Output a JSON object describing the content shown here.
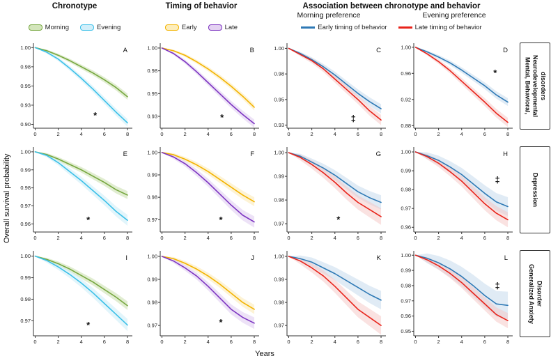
{
  "figure": {
    "ylabel": "Overall survival probability",
    "xlabel": "Years",
    "col_headers": [
      "Chronotype",
      "Timing of behavior",
      "Association between chronotype  and behavior"
    ],
    "sub_headers": [
      "Morning preference",
      "Evening preference"
    ],
    "row_labels": [
      "Mental, Behavioral, Neurodevelopmental disorders",
      "Depression",
      "Generalized Anxiety Disorder"
    ],
    "legends": {
      "chronotype": [
        {
          "label": "Morning",
          "line": "#76a73f",
          "fill": "#d3e5bb"
        },
        {
          "label": "Evening",
          "line": "#3bc0e8",
          "fill": "#d2effa"
        }
      ],
      "timing": [
        {
          "label": "Early",
          "line": "#f3b300",
          "fill": "#fdedbb"
        },
        {
          "label": "Late",
          "line": "#7d35c1",
          "fill": "#e4d2f2"
        }
      ],
      "association": [
        {
          "label": "Early timing of behavior",
          "color": "#2e79b5"
        },
        {
          "label": "Late timing of behavior",
          "color": "#e8231a"
        }
      ]
    }
  },
  "chart_data": {
    "type": "line",
    "title": "Kaplan-Meier overall survival probability by chronotype and timing of behavior",
    "xlabel": "Years",
    "ylabel": "Overall survival probability",
    "x": [
      0,
      1,
      2,
      3,
      4,
      5,
      6,
      7,
      8
    ],
    "xticks": [
      0,
      2,
      4,
      6,
      8
    ],
    "xlim": [
      -0.15,
      8.3
    ],
    "grid": false,
    "panels": [
      {
        "id": "A",
        "ylim": [
          0.895,
          1.003
        ],
        "yticks": [
          {
            "v": 1.0,
            "label": "1.00"
          },
          {
            "v": 0.975,
            "label": "0.98"
          },
          {
            "v": 0.95,
            "label": "0.95"
          },
          {
            "v": 0.925,
            "label": "0.93"
          },
          {
            "v": 0.9,
            "label": "0.90"
          }
        ],
        "marker": {
          "symbol": "*",
          "x": 5.2,
          "y": 0.9075
        },
        "series": [
          {
            "name": "Morning",
            "color": "#76a73f",
            "fill": "#c4dba4",
            "band": 0.004,
            "y": [
              1.0,
              0.996,
              0.99,
              0.983,
              0.975,
              0.967,
              0.958,
              0.948,
              0.936
            ]
          },
          {
            "name": "Evening",
            "color": "#3bc0e8",
            "fill": "#c5ebf8",
            "band": 0.005,
            "y": [
              1.0,
              0.994,
              0.985,
              0.973,
              0.96,
              0.946,
              0.931,
              0.916,
              0.902
            ]
          }
        ]
      },
      {
        "id": "B",
        "ylim": [
          0.912,
          1.003
        ],
        "yticks": [
          {
            "v": 1.0,
            "label": "1.00"
          },
          {
            "v": 0.975,
            "label": "0.98"
          },
          {
            "v": 0.95,
            "label": "0.95"
          },
          {
            "v": 0.925,
            "label": "0.93"
          }
        ],
        "marker": {
          "symbol": "*",
          "x": 5.2,
          "y": 0.9205
        },
        "series": [
          {
            "name": "Early",
            "color": "#f3b300",
            "fill": "#fbe8ac",
            "band": 0.0035,
            "y": [
              1.0,
              0.997,
              0.992,
              0.985,
              0.977,
              0.968,
              0.958,
              0.947,
              0.935
            ]
          },
          {
            "name": "Late",
            "color": "#7d35c1",
            "fill": "#dcc6f0",
            "band": 0.0045,
            "y": [
              1.0,
              0.994,
              0.985,
              0.974,
              0.962,
              0.95,
              0.938,
              0.927,
              0.917
            ]
          }
        ]
      },
      {
        "id": "C",
        "ylim": [
          0.922,
          1.003
        ],
        "yticks": [
          {
            "v": 1.0,
            "label": "1.00"
          },
          {
            "v": 0.975,
            "label": "0.98"
          },
          {
            "v": 0.95,
            "label": "0.95"
          },
          {
            "v": 0.925,
            "label": "0.93"
          }
        ],
        "marker": {
          "symbol": "‡",
          "x": 5.6,
          "y": 0.9285
        },
        "series": [
          {
            "name": "Early timing of behavior",
            "color": "#2e79b5",
            "fill": "#c2d8ec",
            "band": 0.0045,
            "y": [
              1.0,
              0.995,
              0.989,
              0.982,
              0.974,
              0.965,
              0.956,
              0.948,
              0.941
            ]
          },
          {
            "name": "Late timing of behavior",
            "color": "#e8231a",
            "fill": "#f6c6c3",
            "band": 0.005,
            "y": [
              1.0,
              0.994,
              0.988,
              0.98,
              0.97,
              0.96,
              0.95,
              0.939,
              0.93
            ]
          }
        ]
      },
      {
        "id": "D",
        "ylim": [
          0.876,
          1.003
        ],
        "yticks": [
          {
            "v": 1.0,
            "label": "1.00"
          },
          {
            "v": 0.96,
            "label": "0.96"
          },
          {
            "v": 0.92,
            "label": "0.92"
          },
          {
            "v": 0.88,
            "label": "0.88"
          }
        ],
        "marker": {
          "symbol": "*",
          "x": 6.9,
          "y": 0.956
        },
        "series": [
          {
            "name": "Early timing of behavior",
            "color": "#2e79b5",
            "fill": "#c2d8ec",
            "band": 0.006,
            "y": [
              1.0,
              0.993,
              0.985,
              0.976,
              0.965,
              0.953,
              0.941,
              0.927,
              0.916
            ]
          },
          {
            "name": "Late timing of behavior",
            "color": "#e8231a",
            "fill": "#f6c6c3",
            "band": 0.007,
            "y": [
              1.0,
              0.99,
              0.978,
              0.964,
              0.948,
              0.932,
              0.916,
              0.899,
              0.885
            ]
          }
        ]
      },
      {
        "id": "E",
        "ylim": [
          0.9555,
          1.0015
        ],
        "yticks": [
          {
            "v": 1.0,
            "label": "1.00"
          },
          {
            "v": 0.99,
            "label": "0.99"
          },
          {
            "v": 0.98,
            "label": "0.98"
          },
          {
            "v": 0.97,
            "label": "0.97"
          },
          {
            "v": 0.96,
            "label": "0.96"
          }
        ],
        "marker": {
          "symbol": "*",
          "x": 4.6,
          "y": 0.9605
        },
        "series": [
          {
            "name": "Morning",
            "color": "#76a73f",
            "fill": "#c4dba4",
            "band": 0.0022,
            "y": [
              1.0,
              0.9985,
              0.996,
              0.993,
              0.99,
              0.9865,
              0.983,
              0.979,
              0.976
            ]
          },
          {
            "name": "Evening",
            "color": "#3bc0e8",
            "fill": "#c5ebf8",
            "band": 0.003,
            "y": [
              1.0,
              0.998,
              0.994,
              0.989,
              0.984,
              0.9785,
              0.973,
              0.967,
              0.962
            ]
          }
        ]
      },
      {
        "id": "F",
        "ylim": [
          0.9645,
          1.0015
        ],
        "yticks": [
          {
            "v": 1.0,
            "label": "1.00"
          },
          {
            "v": 0.99,
            "label": "0.99"
          },
          {
            "v": 0.98,
            "label": "0.98"
          },
          {
            "v": 0.97,
            "label": "0.97"
          }
        ],
        "marker": {
          "symbol": "*",
          "x": 5.1,
          "y": 0.9685
        },
        "series": [
          {
            "name": "Early",
            "color": "#f3b300",
            "fill": "#fbe8ac",
            "band": 0.002,
            "y": [
              1.0,
              0.999,
              0.997,
              0.9945,
              0.9915,
              0.988,
              0.9845,
              0.981,
              0.978
            ]
          },
          {
            "name": "Late",
            "color": "#7d35c1",
            "fill": "#dcc6f0",
            "band": 0.0025,
            "y": [
              1.0,
              0.998,
              0.995,
              0.991,
              0.9865,
              0.9815,
              0.9765,
              0.972,
              0.969
            ]
          }
        ]
      },
      {
        "id": "G",
        "ylim": [
          0.9665,
          1.0015
        ],
        "yticks": [
          {
            "v": 1.0,
            "label": "1.00"
          },
          {
            "v": 0.99,
            "label": "0.99"
          },
          {
            "v": 0.98,
            "label": "0.98"
          },
          {
            "v": 0.97,
            "label": "0.97"
          }
        ],
        "marker": {
          "symbol": "*",
          "x": 4.3,
          "y": 0.9705
        },
        "series": [
          {
            "name": "Early timing of behavior",
            "color": "#2e79b5",
            "fill": "#c2d8ec",
            "band": 0.003,
            "y": [
              1.0,
              0.9985,
              0.996,
              0.9935,
              0.9905,
              0.987,
              0.9835,
              0.981,
              0.979
            ]
          },
          {
            "name": "Late timing of behavior",
            "color": "#e8231a",
            "fill": "#f6c6c3",
            "band": 0.0035,
            "y": [
              1.0,
              0.998,
              0.995,
              0.9915,
              0.9875,
              0.983,
              0.979,
              0.976,
              0.973
            ]
          }
        ]
      },
      {
        "id": "H",
        "ylim": [
          0.9575,
          1.0015
        ],
        "yticks": [
          {
            "v": 1.0,
            "label": "1.00"
          },
          {
            "v": 0.99,
            "label": "0.99"
          },
          {
            "v": 0.98,
            "label": "0.98"
          },
          {
            "v": 0.97,
            "label": "0.97"
          },
          {
            "v": 0.96,
            "label": "0.96"
          }
        ],
        "marker": {
          "symbol": "‡",
          "x": 7.1,
          "y": 0.9835
        },
        "series": [
          {
            "name": "Early timing of behavior",
            "color": "#2e79b5",
            "fill": "#c2d8ec",
            "band": 0.005,
            "y": [
              1.0,
              0.998,
              0.9955,
              0.992,
              0.988,
              0.983,
              0.978,
              0.9735,
              0.971
            ]
          },
          {
            "name": "Late timing of behavior",
            "color": "#e8231a",
            "fill": "#f6c6c3",
            "band": 0.004,
            "y": [
              1.0,
              0.9975,
              0.994,
              0.9895,
              0.9845,
              0.9785,
              0.9725,
              0.9675,
              0.964
            ]
          }
        ]
      },
      {
        "id": "I",
        "ylim": [
          0.963,
          1.0015
        ],
        "yticks": [
          {
            "v": 1.0,
            "label": "1.00"
          },
          {
            "v": 0.99,
            "label": "0.99"
          },
          {
            "v": 0.98,
            "label": "0.98"
          },
          {
            "v": 0.97,
            "label": "0.97"
          }
        ],
        "marker": {
          "symbol": "*",
          "x": 4.6,
          "y": 0.9665
        },
        "series": [
          {
            "name": "Morning",
            "color": "#76a73f",
            "fill": "#c4dba4",
            "band": 0.002,
            "y": [
              1.0,
              0.9985,
              0.9965,
              0.994,
              0.991,
              0.988,
              0.9845,
              0.981,
              0.977
            ]
          },
          {
            "name": "Evening",
            "color": "#3bc0e8",
            "fill": "#c5ebf8",
            "band": 0.0028,
            "y": [
              1.0,
              0.998,
              0.995,
              0.9915,
              0.9875,
              0.983,
              0.978,
              0.973,
              0.968
            ]
          }
        ]
      },
      {
        "id": "J",
        "ylim": [
          0.9655,
          1.0015
        ],
        "yticks": [
          {
            "v": 1.0,
            "label": "1.00"
          },
          {
            "v": 0.99,
            "label": "0.99"
          },
          {
            "v": 0.98,
            "label": "0.98"
          },
          {
            "v": 0.97,
            "label": "0.97"
          }
        ],
        "marker": {
          "symbol": "*",
          "x": 5.1,
          "y": 0.97
        },
        "series": [
          {
            "name": "Early",
            "color": "#f3b300",
            "fill": "#fbe8ac",
            "band": 0.002,
            "y": [
              1.0,
              0.999,
              0.997,
              0.9945,
              0.9915,
              0.988,
              0.984,
              0.98,
              0.977
            ]
          },
          {
            "name": "Late",
            "color": "#7d35c1",
            "fill": "#dcc6f0",
            "band": 0.0025,
            "y": [
              1.0,
              0.998,
              0.995,
              0.9915,
              0.987,
              0.982,
              0.977,
              0.9735,
              0.971
            ]
          }
        ]
      },
      {
        "id": "K",
        "ylim": [
          0.9655,
          1.0015
        ],
        "yticks": [
          {
            "v": 1.0,
            "label": "1.00"
          },
          {
            "v": 0.99,
            "label": "0.99"
          },
          {
            "v": 0.98,
            "label": "0.98"
          },
          {
            "v": 0.97,
            "label": "0.97"
          }
        ],
        "marker": null,
        "series": [
          {
            "name": "Early timing of behavior",
            "color": "#2e79b5",
            "fill": "#c2d8ec",
            "band": 0.004,
            "y": [
              1.0,
              0.999,
              0.9975,
              0.995,
              0.9925,
              0.9895,
              0.9865,
              0.9835,
              0.981
            ]
          },
          {
            "name": "Late timing of behavior",
            "color": "#e8231a",
            "fill": "#f6c6c3",
            "band": 0.004,
            "y": [
              1.0,
              0.998,
              0.995,
              0.9915,
              0.987,
              0.982,
              0.977,
              0.9735,
              0.97
            ]
          }
        ]
      },
      {
        "id": "L",
        "ylim": [
          0.947,
          1.0015
        ],
        "yticks": [
          {
            "v": 1.0,
            "label": "1.00"
          },
          {
            "v": 0.99,
            "label": "0.99"
          },
          {
            "v": 0.98,
            "label": "0.98"
          },
          {
            "v": 0.97,
            "label": "0.97"
          },
          {
            "v": 0.96,
            "label": "0.96"
          },
          {
            "v": 0.95,
            "label": "0.95"
          }
        ],
        "marker": {
          "symbol": "‡",
          "x": 7.1,
          "y": 0.978
        },
        "series": [
          {
            "name": "Early timing of behavior",
            "color": "#2e79b5",
            "fill": "#c2d8ec",
            "band": 0.009,
            "y": [
              1.0,
              0.998,
              0.995,
              0.991,
              0.986,
              0.98,
              0.9735,
              0.968,
              0.967
            ]
          },
          {
            "name": "Late timing of behavior",
            "color": "#e8231a",
            "fill": "#f6c6c3",
            "band": 0.005,
            "y": [
              1.0,
              0.997,
              0.993,
              0.988,
              0.982,
              0.975,
              0.968,
              0.961,
              0.957
            ]
          }
        ]
      }
    ]
  }
}
